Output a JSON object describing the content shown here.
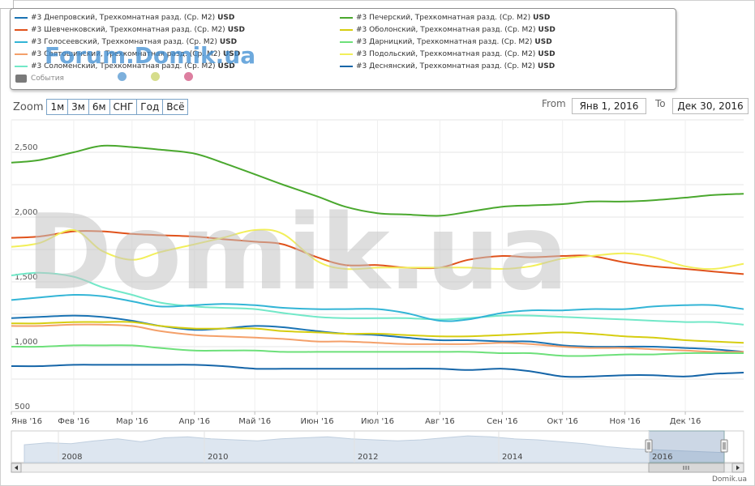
{
  "legend": {
    "left_items": [
      {
        "label": "#3 Днепровский, Трехкомнатная разд. (Ср. М2)",
        "unit": "USD",
        "color": "#1a73b3"
      },
      {
        "label": "#3 Шевченковский, Трехкомнатная разд. (Ср. М2)",
        "unit": "USD",
        "color": "#e0521b"
      },
      {
        "label": "#3 Голосеевский, Трехкомнатная разд. (Ср. М2)",
        "unit": "USD",
        "color": "#33b5d6"
      },
      {
        "label": "#3 Святошинский, Трехкомнатная разд. (Ср. М2)",
        "unit": "USD",
        "color": "#f4a06a"
      },
      {
        "label": "#3 Соломенский, Трехкомнатная разд. (Ср. М2)",
        "unit": "USD",
        "color": "#72e8c8"
      }
    ],
    "right_items": [
      {
        "label": "#3 Печерский, Трехкомнатная разд. (Ср. М2)",
        "unit": "USD",
        "color": "#4aa82e"
      },
      {
        "label": "#3 Оболонский, Трехкомнатная разд. (Ср. М2)",
        "unit": "USD",
        "color": "#d6cd10"
      },
      {
        "label": "#3 Дарницкий, Трехкомнатная разд. (Ср. М2)",
        "unit": "USD",
        "color": "#6de07a"
      },
      {
        "label": "#3 Подольский, Трехкомнатная разд. (Ср. М2)",
        "unit": "USD",
        "color": "#f2ef5a"
      },
      {
        "label": "#3 Деснянский, Трехкомнатная разд. (Ср. М2)",
        "unit": "USD",
        "color": "#1565a8"
      }
    ],
    "events_label": "События",
    "event_dot_colors": [
      "#7db0dc",
      "#d6dd8c",
      "#dd7fa0"
    ]
  },
  "watermark_top": "Forum.Domik.ua",
  "watermark_big": "Domik.ua",
  "zoom": {
    "label": "Zoom",
    "buttons": [
      "1м",
      "3м",
      "6м",
      "СНГ",
      "Год",
      "Всё"
    ]
  },
  "range": {
    "from_label": "From",
    "from_value": "Янв 1, 2016",
    "to_label": "To",
    "to_value": "Дек 30, 2016"
  },
  "footer": "Domik.ua",
  "chart_data": {
    "type": "line",
    "x": [
      "2016-01-01",
      "2016-01-15",
      "2016-02-01",
      "2016-02-15",
      "2016-03-01",
      "2016-03-15",
      "2016-04-01",
      "2016-04-15",
      "2016-05-01",
      "2016-05-15",
      "2016-06-01",
      "2016-06-15",
      "2016-07-01",
      "2016-07-15",
      "2016-08-01",
      "2016-08-15",
      "2016-09-01",
      "2016-09-15",
      "2016-10-01",
      "2016-10-15",
      "2016-11-01",
      "2016-11-15",
      "2016-12-01",
      "2016-12-15",
      "2016-12-30"
    ],
    "x_tick_labels": [
      "Янв '16",
      "Фев '16",
      "Мар '16",
      "Апр '16",
      "Май '16",
      "Июн '16",
      "Июл '16",
      "Авг '16",
      "Сен '16",
      "Окт '16",
      "Ноя '16",
      "Дек '16"
    ],
    "y_tick_labels": [
      "500",
      "1,000",
      "1,500",
      "2,000",
      "2,500"
    ],
    "ylim": [
      500,
      2750
    ],
    "grid": true,
    "legend_position": "top",
    "series": [
      {
        "name": "#3 Печерский, Трехкомнатная разд. (Ср. М2)",
        "color": "#4aa82e",
        "values": [
          2420,
          2440,
          2500,
          2550,
          2540,
          2520,
          2490,
          2420,
          2330,
          2250,
          2160,
          2080,
          2030,
          2020,
          2010,
          2040,
          2080,
          2090,
          2100,
          2120,
          2120,
          2130,
          2150,
          2170,
          2180
        ]
      },
      {
        "name": "#3 Шевченковский, Трехкомнатная разд. (Ср. М2)",
        "color": "#e0521b",
        "values": [
          1840,
          1850,
          1890,
          1890,
          1870,
          1860,
          1850,
          1830,
          1810,
          1790,
          1690,
          1630,
          1630,
          1610,
          1610,
          1670,
          1700,
          1690,
          1700,
          1700,
          1650,
          1620,
          1600,
          1580,
          1560
        ]
      },
      {
        "name": "#3 Подольский, Трехкомнатная разд. (Ср. М2)",
        "color": "#f2ef5a",
        "values": [
          1770,
          1800,
          1900,
          1740,
          1670,
          1730,
          1790,
          1840,
          1900,
          1870,
          1660,
          1600,
          1610,
          1610,
          1610,
          1610,
          1600,
          1620,
          1680,
          1700,
          1720,
          1690,
          1620,
          1600,
          1640
        ]
      },
      {
        "name": "#3 Соломенский, Трехкомнатная разд. (Ср. М2)",
        "color": "#72e8c8",
        "values": [
          1550,
          1570,
          1540,
          1460,
          1400,
          1340,
          1310,
          1300,
          1290,
          1260,
          1230,
          1220,
          1220,
          1220,
          1210,
          1220,
          1240,
          1240,
          1230,
          1220,
          1210,
          1200,
          1190,
          1190,
          1170
        ]
      },
      {
        "name": "#3 Голосеевский, Трехкомнатная разд. (Ср. М2)",
        "color": "#33b5d6",
        "values": [
          1360,
          1380,
          1400,
          1390,
          1350,
          1310,
          1320,
          1330,
          1320,
          1300,
          1290,
          1290,
          1290,
          1260,
          1200,
          1210,
          1260,
          1280,
          1280,
          1290,
          1290,
          1310,
          1320,
          1320,
          1290
        ]
      },
      {
        "name": "#3 Днепровский, Трехкомнатная разд. (Ср. М2)",
        "color": "#1a73b3",
        "values": [
          1220,
          1230,
          1240,
          1230,
          1200,
          1160,
          1130,
          1140,
          1160,
          1150,
          1120,
          1100,
          1090,
          1070,
          1050,
          1050,
          1040,
          1040,
          1010,
          1000,
          1000,
          1000,
          990,
          980,
          960
        ]
      },
      {
        "name": "#3 Оболонский, Трехкомнатная разд. (Ср. М2)",
        "color": "#d6cd10",
        "values": [
          1180,
          1180,
          1190,
          1190,
          1190,
          1160,
          1140,
          1140,
          1140,
          1120,
          1110,
          1100,
          1100,
          1090,
          1080,
          1080,
          1090,
          1100,
          1110,
          1100,
          1080,
          1070,
          1050,
          1040,
          1030
        ]
      },
      {
        "name": "#3 Святошинский, Трехкомнатная разд. (Ср. М2)",
        "color": "#f4a06a",
        "values": [
          1160,
          1160,
          1170,
          1170,
          1160,
          1120,
          1090,
          1080,
          1070,
          1060,
          1040,
          1040,
          1030,
          1020,
          1020,
          1020,
          1030,
          1020,
          1000,
          990,
          990,
          980,
          970,
          960,
          960
        ]
      },
      {
        "name": "#3 Дарницкий, Трехкомнатная разд. (Ср. М2)",
        "color": "#6de07a",
        "values": [
          1000,
          1000,
          1010,
          1010,
          1010,
          990,
          970,
          970,
          970,
          960,
          960,
          960,
          960,
          960,
          960,
          960,
          950,
          950,
          930,
          930,
          940,
          940,
          950,
          950,
          950
        ]
      },
      {
        "name": "#3 Деснянский, Трехкомнатная разд. (Ср. М2)",
        "color": "#1565a8",
        "values": [
          850,
          850,
          860,
          860,
          860,
          860,
          860,
          850,
          830,
          830,
          830,
          830,
          830,
          830,
          830,
          820,
          830,
          810,
          770,
          770,
          780,
          780,
          770,
          790,
          800
        ]
      }
    ],
    "navigator": {
      "tick_labels": [
        "2008",
        "2010",
        "2012",
        "2014",
        "2016"
      ],
      "values": [
        1900,
        2000,
        1950,
        2100,
        2200,
        2050,
        2250,
        2300,
        2200,
        2150,
        2100,
        2200,
        2250,
        2300,
        2200,
        2150,
        2100,
        2150,
        2250,
        2350,
        2300,
        2200,
        2150,
        2050,
        1950,
        1800,
        1700,
        1650,
        1600,
        1550,
        1500
      ]
    }
  }
}
